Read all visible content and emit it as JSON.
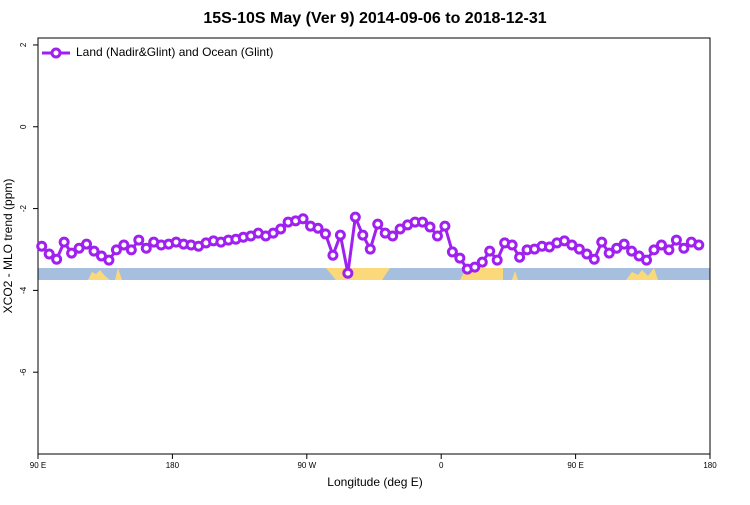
{
  "chart_data": {
    "type": "line",
    "title": "15S-10S May (Ver 9)   2014-09-06 to 2018-12-31",
    "xlabel": "Longitude (deg E)",
    "ylabel": "XCO2 - MLO trend (ppm)",
    "x": [
      92.5,
      97.5,
      102.5,
      107.5,
      112.5,
      117.5,
      122.5,
      127.5,
      132.5,
      137.5,
      142.5,
      147.5,
      152.5,
      157.5,
      162.5,
      167.5,
      172.5,
      177.5,
      182.5,
      187.5,
      192.5,
      197.5,
      202.5,
      207.5,
      212.5,
      217.5,
      222.5,
      227.5,
      232.5,
      237.5,
      242.5,
      247.5,
      252.5,
      257.5,
      262.5,
      267.5,
      272.5,
      277.5,
      282.5,
      287.5,
      292.5,
      297.5,
      302.5,
      307.5,
      312.5,
      317.5,
      322.5,
      327.5,
      332.5,
      337.5,
      342.5,
      347.5,
      352.5,
      357.5,
      362.5,
      367.5,
      372.5,
      377.5,
      382.5,
      387.5,
      392.5,
      397.5,
      402.5,
      407.5,
      412.5,
      417.5,
      422.5,
      427.5,
      432.5,
      437.5,
      442.5,
      447.5,
      452.5,
      457.5,
      462.5,
      467.5,
      472.5,
      477.5,
      482.5,
      487.5,
      492.5,
      497.5,
      502.5,
      507.5,
      512.5,
      517.5,
      522.5,
      527.5,
      532.5
    ],
    "series": [
      {
        "name": "Land (Nadir&Glint) and Ocean (Glint)",
        "color": "#a020f0",
        "values": [
          -2.92,
          -3.11,
          -3.24,
          -2.82,
          -3.09,
          -2.97,
          -2.87,
          -3.04,
          -3.16,
          -3.26,
          -3.01,
          -2.89,
          -3.01,
          -2.77,
          -2.97,
          -2.82,
          -2.89,
          -2.87,
          -2.82,
          -2.87,
          -2.89,
          -2.92,
          -2.84,
          -2.79,
          -2.82,
          -2.77,
          -2.75,
          -2.7,
          -2.67,
          -2.6,
          -2.67,
          -2.6,
          -2.5,
          -2.33,
          -2.3,
          -2.25,
          -2.43,
          -2.48,
          -2.62,
          -3.14,
          -2.65,
          -3.58,
          -2.21,
          -2.65,
          -2.99,
          -2.38,
          -2.6,
          -2.67,
          -2.5,
          -2.4,
          -2.33,
          -2.33,
          -2.45,
          -2.67,
          -2.43,
          -3.06,
          -3.21,
          -3.48,
          -3.43,
          -3.31,
          -3.04,
          -3.26,
          -2.84,
          -2.89,
          -3.19,
          -3.01,
          -2.99,
          -2.92,
          -2.94,
          -2.84,
          -2.79,
          -2.89,
          -2.99,
          -3.11,
          -3.24,
          -2.82,
          -3.09,
          -2.97,
          -2.87,
          -3.04,
          -3.16,
          -3.26,
          -3.01,
          -2.89,
          -3.01,
          -2.77,
          -2.97,
          -2.82,
          -2.89
        ]
      }
    ],
    "xlim": [
      90,
      540
    ],
    "xticks": [
      {
        "value": 90,
        "label": "90 E"
      },
      180,
      {
        "value": 270,
        "label": "90 W"
      },
      {
        "value": 360,
        "label": "0"
      },
      {
        "value": 450,
        "label": "90 E"
      },
      {
        "value": 540,
        "label": "180"
      }
    ],
    "ylim": [
      -8,
      2.17
    ],
    "yticks": [
      2,
      0,
      -2,
      -4,
      -6
    ],
    "legend": "top-left"
  }
}
